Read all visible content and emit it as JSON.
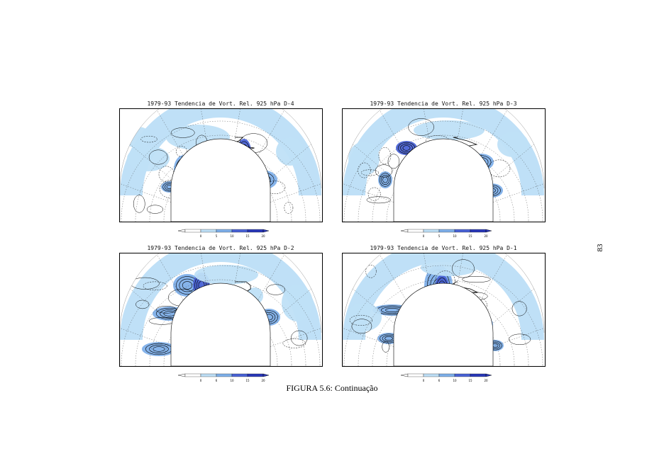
{
  "panels": [
    {
      "id": "d4",
      "title": "1979-93 Tendencia de Vort. Rel. 925 hPa D-4"
    },
    {
      "id": "d3",
      "title": "1979-93 Tendencia de Vort. Rel. 925 hPa D-3"
    },
    {
      "id": "d2",
      "title": "1979-93 Tendencia de Vort. Rel. 925 hPa D-2"
    },
    {
      "id": "d1",
      "title": "1979-93 Tendencia de Vort. Rel. 925 hPa D-1"
    }
  ],
  "colorbars": [
    {
      "ticks": [
        "0",
        "5",
        "10",
        "15",
        "20"
      ]
    },
    {
      "ticks": [
        "0",
        "5",
        "10",
        "15",
        "20"
      ]
    },
    {
      "ticks": [
        "0",
        "6",
        "10",
        "15",
        "20"
      ]
    },
    {
      "ticks": [
        "0",
        "6",
        "10",
        "15",
        "20"
      ]
    }
  ],
  "colors": {
    "fill_light": "#bfe0f7",
    "fill_mid": "#7fb0ea",
    "fill_dark": "#4a63d6",
    "fill_darkest": "#2a38b8",
    "contour": "#000000"
  },
  "caption": "FIGURA 5.6: Continuação",
  "page_number": "83"
}
